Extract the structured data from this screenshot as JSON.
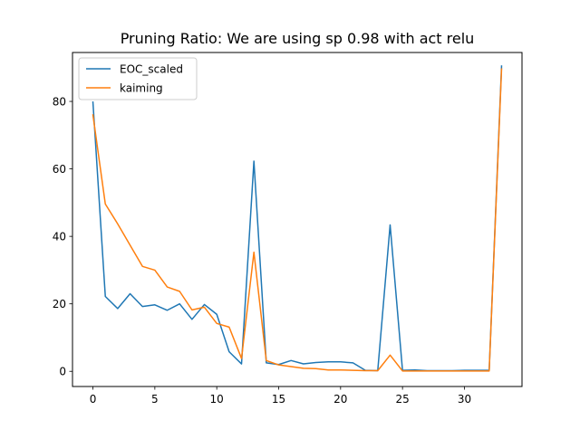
{
  "chart_data": {
    "type": "line",
    "title": "Pruning Ratio: We are using sp 0.98 with act relu",
    "xlabel": "",
    "ylabel": "",
    "xlim": [
      -1.65,
      34.65
    ],
    "ylim": [
      -4.5,
      94.5
    ],
    "xticks": [
      0,
      5,
      10,
      15,
      20,
      25,
      30
    ],
    "yticks": [
      0,
      20,
      40,
      60,
      80
    ],
    "grid": false,
    "legend": "upper-left",
    "x": [
      0,
      1,
      2,
      3,
      4,
      5,
      6,
      7,
      8,
      9,
      10,
      11,
      12,
      13,
      14,
      15,
      16,
      17,
      18,
      19,
      20,
      21,
      22,
      23,
      24,
      25,
      26,
      27,
      28,
      29,
      30,
      31,
      32,
      33
    ],
    "series": [
      {
        "name": "EOC_scaled",
        "color": "#1f77b4",
        "values": [
          79.8,
          22.2,
          18.6,
          23.0,
          19.2,
          19.7,
          18.1,
          20.0,
          15.4,
          19.8,
          16.9,
          5.8,
          2.2,
          62.3,
          2.5,
          2.0,
          3.2,
          2.2,
          2.6,
          2.8,
          2.8,
          2.5,
          0.3,
          0.2,
          43.4,
          0.3,
          0.4,
          0.2,
          0.2,
          0.2,
          0.3,
          0.3,
          0.3,
          90.5
        ]
      },
      {
        "name": "kaiming",
        "color": "#ff7f0e",
        "values": [
          76.0,
          49.6,
          43.7,
          37.4,
          31.1,
          30.0,
          25.0,
          23.7,
          18.2,
          19.0,
          14.2,
          13.1,
          3.8,
          35.3,
          3.2,
          1.9,
          1.4,
          0.9,
          0.8,
          0.4,
          0.4,
          0.3,
          0.2,
          0.2,
          4.8,
          0.1,
          0.1,
          0.1,
          0.1,
          0.1,
          0.1,
          0.1,
          0.1,
          89.6
        ]
      }
    ]
  }
}
